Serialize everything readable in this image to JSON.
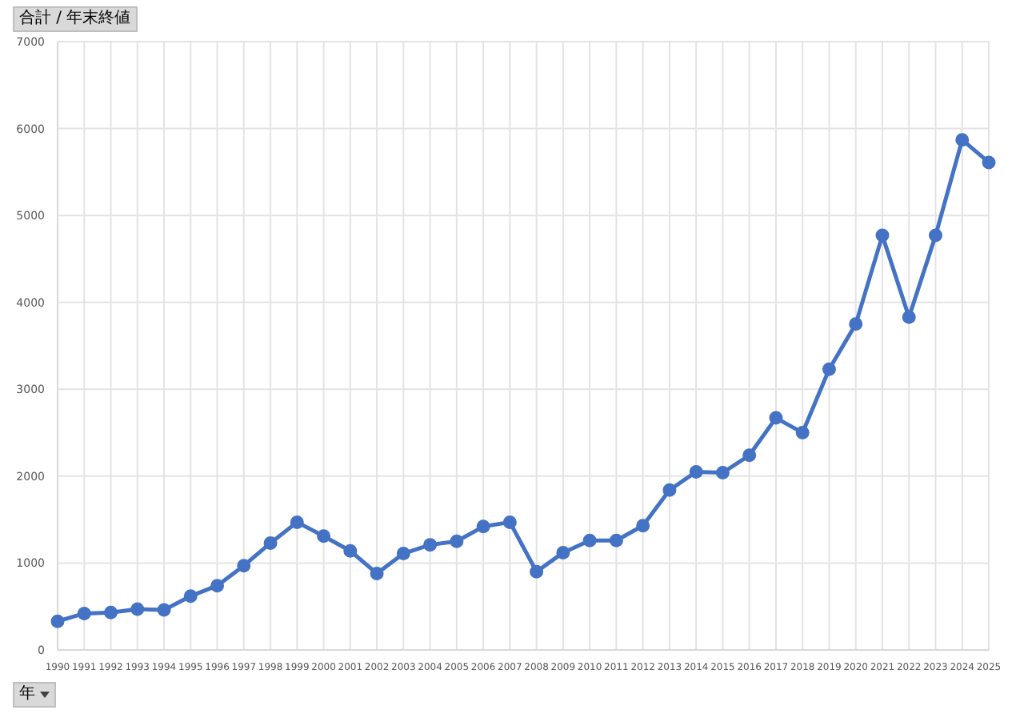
{
  "chart_data": {
    "type": "line",
    "annotations": [
      "合計 / 年末終値",
      "年"
    ],
    "categories": [
      "1990",
      "1991",
      "1992",
      "1993",
      "1994",
      "1995",
      "1996",
      "1997",
      "1998",
      "1999",
      "2000",
      "2001",
      "2002",
      "2003",
      "2004",
      "2005",
      "2006",
      "2007",
      "2008",
      "2009",
      "2010",
      "2011",
      "2012",
      "2013",
      "2014",
      "2015",
      "2016",
      "2017",
      "2018",
      "2019",
      "2020",
      "2021",
      "2022",
      "2023",
      "2024",
      "2025"
    ],
    "series": [
      {
        "color": "#4472c4",
        "values": [
          330,
          420,
          430,
          470,
          460,
          620,
          740,
          970,
          1230,
          1470,
          1310,
          1140,
          880,
          1110,
          1210,
          1250,
          1420,
          1470,
          900,
          1120,
          1260,
          1260,
          1430,
          1840,
          2050,
          2040,
          2240,
          2670,
          2500,
          3230,
          3750,
          4770,
          3830,
          4770,
          5870,
          5610
        ]
      }
    ],
    "ylim": [
      0,
      7000
    ],
    "yticks": [
      0,
      1000,
      2000,
      3000,
      4000,
      5000,
      6000,
      7000
    ],
    "grid": true,
    "marker": "circle",
    "line_style": "solid"
  }
}
